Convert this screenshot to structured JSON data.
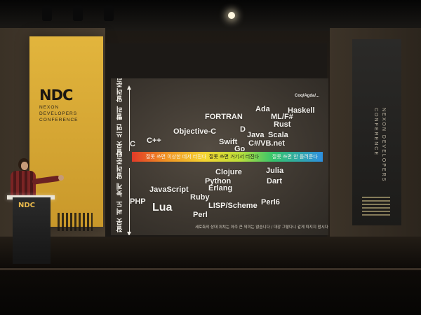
{
  "banner_left": {
    "logo": "NDC",
    "subtitle": "NEXON DEVELOPERS CONFERENCE"
  },
  "banner_right": {
    "text": "NEXON DEVELOPERS CONFERENCE"
  },
  "podium": {
    "logo": "NDC"
  },
  "slide": {
    "axis_top_label": "잘못 쓰면 빨리 알려준다",
    "axis_bottom_label": "잘못 써도 늦게 알려준다",
    "band_labels": {
      "left": "잘못 쓰면 이상한 데서 터진다",
      "middle": "잘못 쓰면 거기서 터진다",
      "right": "잘못 쓰면 안 돌려준다"
    },
    "languages": {
      "coq": "Coq/Agda/...",
      "ada": "Ada",
      "haskell": "Haskell",
      "mlf": "ML/F#",
      "fortran": "FORTRAN",
      "rust": "Rust",
      "objc": "Objective-C",
      "d": "D",
      "java": "Java",
      "scala": "Scala",
      "c": "C",
      "cpp": "C++",
      "swift": "Swift",
      "csharp": "C#/VB.net",
      "go": "Go",
      "clojure": "Clojure",
      "julia": "Julia",
      "python": "Python",
      "dart": "Dart",
      "erlang": "Erlang",
      "javascript": "JavaScript",
      "ruby": "Ruby",
      "php": "PHP",
      "lua": "Lua",
      "lisp": "LISP/Scheme",
      "perl6": "Perl6",
      "perl": "Perl"
    },
    "footnote": "세로축의 상대 위치는 아주 큰 의미는 없습니다 / 대강 그렇다니 같게 따지지 맙시다"
  }
}
